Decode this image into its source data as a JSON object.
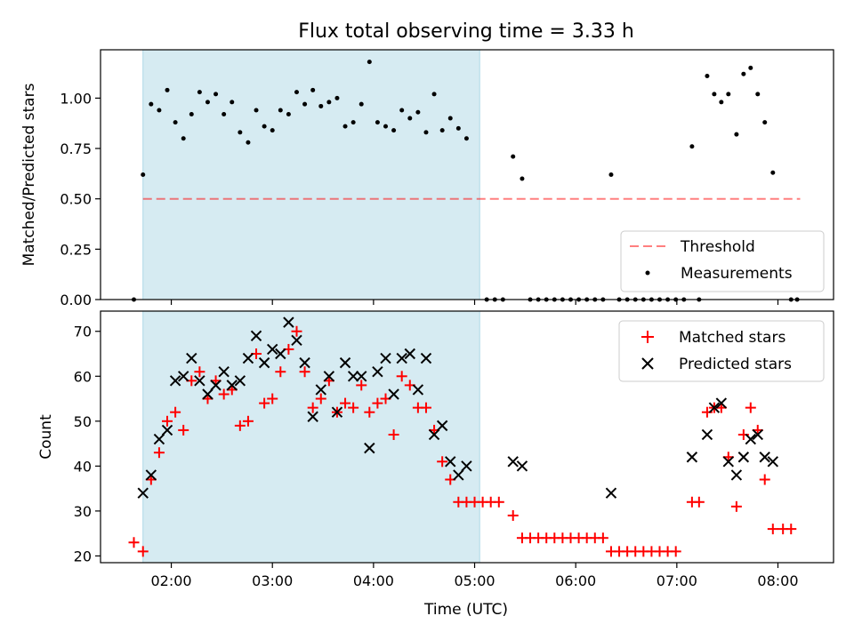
{
  "figure": {
    "title": "Flux total observing time = 3.33 h",
    "xlabel": "Time (UTC)"
  },
  "colors": {
    "shade": "#add8e6",
    "threshold": "#ff0000",
    "matched": "#ff0000",
    "predicted": "#000000",
    "measurement": "#000000"
  },
  "chart_data": [
    {
      "type": "scatter",
      "title": "Flux total observing time = 3.33 h",
      "ylabel": "Matched/Predicted stars",
      "xlabel": "",
      "x_unit": "hours UTC",
      "xlim": [
        1.3,
        8.55
      ],
      "ylim": [
        0.0,
        1.24
      ],
      "yticks": [
        0.0,
        0.25,
        0.5,
        0.75,
        1.0
      ],
      "ytick_labels": [
        "0.00",
        "0.25",
        "0.50",
        "0.75",
        "1.00"
      ],
      "shaded_span": [
        1.72,
        5.05
      ],
      "threshold": {
        "name": "Threshold",
        "y": 0.5,
        "x": [
          1.72,
          8.22
        ]
      },
      "legend": {
        "placement": "lower-right",
        "entries": [
          "Threshold",
          "Measurements"
        ]
      },
      "series": [
        {
          "name": "Measurements",
          "points": [
            [
              1.63,
              0.0
            ],
            [
              1.72,
              0.62
            ],
            [
              1.8,
              0.97
            ],
            [
              1.88,
              0.94
            ],
            [
              1.96,
              1.04
            ],
            [
              2.04,
              0.88
            ],
            [
              2.12,
              0.8
            ],
            [
              2.2,
              0.92
            ],
            [
              2.28,
              1.03
            ],
            [
              2.36,
              0.98
            ],
            [
              2.44,
              1.02
            ],
            [
              2.52,
              0.92
            ],
            [
              2.6,
              0.98
            ],
            [
              2.68,
              0.83
            ],
            [
              2.76,
              0.78
            ],
            [
              2.84,
              0.94
            ],
            [
              2.92,
              0.86
            ],
            [
              3.0,
              0.84
            ],
            [
              3.08,
              0.94
            ],
            [
              3.16,
              0.92
            ],
            [
              3.24,
              1.03
            ],
            [
              3.32,
              0.97
            ],
            [
              3.4,
              1.04
            ],
            [
              3.48,
              0.96
            ],
            [
              3.56,
              0.98
            ],
            [
              3.64,
              1.0
            ],
            [
              3.72,
              0.86
            ],
            [
              3.8,
              0.88
            ],
            [
              3.88,
              0.97
            ],
            [
              3.96,
              1.18
            ],
            [
              4.04,
              0.88
            ],
            [
              4.12,
              0.86
            ],
            [
              4.2,
              0.84
            ],
            [
              4.28,
              0.94
            ],
            [
              4.36,
              0.9
            ],
            [
              4.44,
              0.93
            ],
            [
              4.52,
              0.83
            ],
            [
              4.6,
              1.02
            ],
            [
              4.68,
              0.84
            ],
            [
              4.76,
              0.9
            ],
            [
              4.84,
              0.85
            ],
            [
              4.92,
              0.8
            ],
            [
              5.12,
              0.0
            ],
            [
              5.2,
              0.0
            ],
            [
              5.28,
              0.0
            ],
            [
              5.38,
              0.71
            ],
            [
              5.47,
              0.6
            ],
            [
              5.55,
              0.0
            ],
            [
              5.63,
              0.0
            ],
            [
              5.71,
              0.0
            ],
            [
              5.79,
              0.0
            ],
            [
              5.87,
              0.0
            ],
            [
              5.95,
              0.0
            ],
            [
              6.03,
              0.0
            ],
            [
              6.11,
              0.0
            ],
            [
              6.19,
              0.0
            ],
            [
              6.27,
              0.0
            ],
            [
              6.35,
              0.62
            ],
            [
              6.43,
              0.0
            ],
            [
              6.51,
              0.0
            ],
            [
              6.59,
              0.0
            ],
            [
              6.67,
              0.0
            ],
            [
              6.75,
              0.0
            ],
            [
              6.83,
              0.0
            ],
            [
              6.91,
              0.0
            ],
            [
              6.99,
              0.0
            ],
            [
              7.07,
              0.0
            ],
            [
              7.15,
              0.76
            ],
            [
              7.22,
              0.0
            ],
            [
              7.3,
              1.11
            ],
            [
              7.37,
              1.02
            ],
            [
              7.44,
              0.98
            ],
            [
              7.51,
              1.02
            ],
            [
              7.59,
              0.82
            ],
            [
              7.66,
              1.12
            ],
            [
              7.73,
              1.15
            ],
            [
              7.8,
              1.02
            ],
            [
              7.87,
              0.88
            ],
            [
              7.95,
              0.63
            ],
            [
              8.13,
              0.0
            ],
            [
              8.19,
              0.0
            ]
          ]
        }
      ]
    },
    {
      "type": "scatter",
      "ylabel": "Count",
      "xlabel": "Time (UTC)",
      "x_unit": "hours UTC",
      "xlim": [
        1.3,
        8.55
      ],
      "ylim": [
        18.5,
        74.5
      ],
      "xticks": [
        2,
        3,
        4,
        5,
        6,
        7,
        8
      ],
      "xtick_labels": [
        "02:00",
        "03:00",
        "04:00",
        "05:00",
        "06:00",
        "07:00",
        "08:00"
      ],
      "yticks": [
        20,
        30,
        40,
        50,
        60,
        70
      ],
      "ytick_labels": [
        "20",
        "30",
        "40",
        "50",
        "60",
        "70"
      ],
      "shaded_span": [
        1.72,
        5.05
      ],
      "legend": {
        "placement": "top-right",
        "entries": [
          "Matched stars",
          "Predicted stars"
        ]
      },
      "series": [
        {
          "name": "Matched stars",
          "points": [
            [
              1.63,
              23
            ],
            [
              1.72,
              21
            ],
            [
              1.8,
              37
            ],
            [
              1.88,
              43
            ],
            [
              1.96,
              50
            ],
            [
              2.04,
              52
            ],
            [
              2.12,
              48
            ],
            [
              2.2,
              59
            ],
            [
              2.28,
              61
            ],
            [
              2.36,
              55
            ],
            [
              2.44,
              59
            ],
            [
              2.52,
              56
            ],
            [
              2.6,
              57
            ],
            [
              2.68,
              49
            ],
            [
              2.76,
              50
            ],
            [
              2.84,
              65
            ],
            [
              2.92,
              54
            ],
            [
              3.0,
              55
            ],
            [
              3.08,
              61
            ],
            [
              3.16,
              66
            ],
            [
              3.24,
              70
            ],
            [
              3.32,
              61
            ],
            [
              3.4,
              53
            ],
            [
              3.48,
              55
            ],
            [
              3.56,
              59
            ],
            [
              3.64,
              52
            ],
            [
              3.72,
              54
            ],
            [
              3.8,
              53
            ],
            [
              3.88,
              58
            ],
            [
              3.96,
              52
            ],
            [
              4.04,
              54
            ],
            [
              4.12,
              55
            ],
            [
              4.2,
              47
            ],
            [
              4.28,
              60
            ],
            [
              4.36,
              58
            ],
            [
              4.44,
              53
            ],
            [
              4.52,
              53
            ],
            [
              4.6,
              48
            ],
            [
              4.68,
              41
            ],
            [
              4.76,
              37
            ],
            [
              4.84,
              32
            ],
            [
              4.92,
              32
            ],
            [
              5.0,
              32
            ],
            [
              5.08,
              32
            ],
            [
              5.16,
              32
            ],
            [
              5.24,
              32
            ],
            [
              5.38,
              29
            ],
            [
              5.47,
              24
            ],
            [
              5.55,
              24
            ],
            [
              5.63,
              24
            ],
            [
              5.71,
              24
            ],
            [
              5.79,
              24
            ],
            [
              5.87,
              24
            ],
            [
              5.95,
              24
            ],
            [
              6.03,
              24
            ],
            [
              6.11,
              24
            ],
            [
              6.19,
              24
            ],
            [
              6.27,
              24
            ],
            [
              6.35,
              21
            ],
            [
              6.43,
              21
            ],
            [
              6.51,
              21
            ],
            [
              6.59,
              21
            ],
            [
              6.67,
              21
            ],
            [
              6.75,
              21
            ],
            [
              6.83,
              21
            ],
            [
              6.91,
              21
            ],
            [
              6.99,
              21
            ],
            [
              7.15,
              32
            ],
            [
              7.22,
              32
            ],
            [
              7.3,
              52
            ],
            [
              7.37,
              53
            ],
            [
              7.44,
              53
            ],
            [
              7.51,
              42
            ],
            [
              7.59,
              31
            ],
            [
              7.66,
              47
            ],
            [
              7.73,
              53
            ],
            [
              7.8,
              48
            ],
            [
              7.87,
              37
            ],
            [
              7.95,
              26
            ],
            [
              8.05,
              26
            ],
            [
              8.13,
              26
            ]
          ]
        },
        {
          "name": "Predicted stars",
          "points": [
            [
              1.72,
              34
            ],
            [
              1.8,
              38
            ],
            [
              1.88,
              46
            ],
            [
              1.96,
              48
            ],
            [
              2.04,
              59
            ],
            [
              2.12,
              60
            ],
            [
              2.2,
              64
            ],
            [
              2.28,
              59
            ],
            [
              2.36,
              56
            ],
            [
              2.44,
              58
            ],
            [
              2.52,
              61
            ],
            [
              2.6,
              58
            ],
            [
              2.68,
              59
            ],
            [
              2.76,
              64
            ],
            [
              2.84,
              69
            ],
            [
              2.92,
              63
            ],
            [
              3.0,
              66
            ],
            [
              3.08,
              65
            ],
            [
              3.16,
              72
            ],
            [
              3.24,
              68
            ],
            [
              3.32,
              63
            ],
            [
              3.4,
              51
            ],
            [
              3.48,
              57
            ],
            [
              3.56,
              60
            ],
            [
              3.64,
              52
            ],
            [
              3.72,
              63
            ],
            [
              3.8,
              60
            ],
            [
              3.88,
              60
            ],
            [
              3.96,
              44
            ],
            [
              4.04,
              61
            ],
            [
              4.12,
              64
            ],
            [
              4.2,
              56
            ],
            [
              4.28,
              64
            ],
            [
              4.36,
              65
            ],
            [
              4.44,
              57
            ],
            [
              4.52,
              64
            ],
            [
              4.6,
              47
            ],
            [
              4.68,
              49
            ],
            [
              4.76,
              41
            ],
            [
              4.84,
              38
            ],
            [
              4.92,
              40
            ],
            [
              5.38,
              41
            ],
            [
              5.47,
              40
            ],
            [
              6.35,
              34
            ],
            [
              7.15,
              42
            ],
            [
              7.3,
              47
            ],
            [
              7.37,
              53
            ],
            [
              7.44,
              54
            ],
            [
              7.51,
              41
            ],
            [
              7.59,
              38
            ],
            [
              7.66,
              42
            ],
            [
              7.73,
              46
            ],
            [
              7.8,
              47
            ],
            [
              7.87,
              42
            ],
            [
              7.95,
              41
            ]
          ]
        }
      ]
    }
  ]
}
